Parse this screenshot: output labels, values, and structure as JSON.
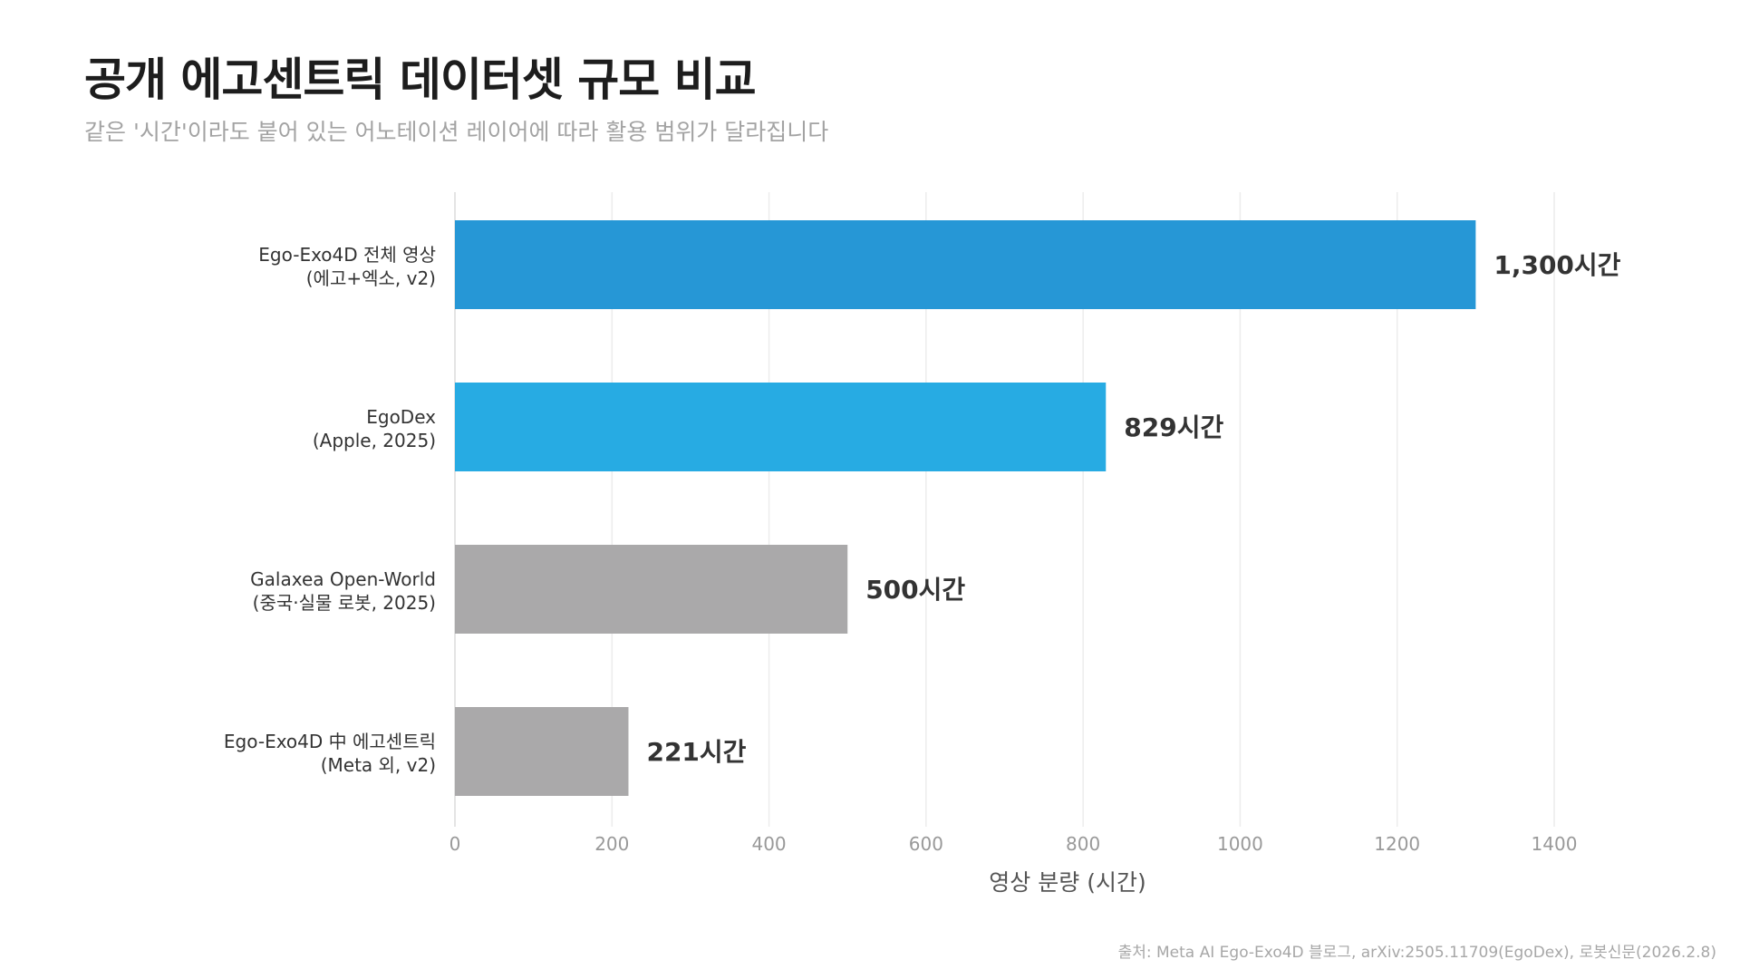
{
  "title": "공개 에고센트릭 데이터셋 규모 비교",
  "subtitle": "같은 '시간'이라도 붙어 있는 어노테이션 레이어에 따라 활용 범위가 달라집니다",
  "source": "출처: Meta AI Ego-Exo4D 블로그, arXiv:2505.11709(EgoDex), 로봇신문(2026.2.8)",
  "chart_data": {
    "type": "bar",
    "orientation": "horizontal",
    "categories": [
      [
        "Ego-Exo4D 전체 영상",
        "(에고+엑소, v2)"
      ],
      [
        "EgoDex",
        "(Apple, 2025)"
      ],
      [
        "Galaxea Open-World",
        "(중국·실물 로봇, 2025)"
      ],
      [
        "Ego-Exo4D 中 에고센트릭",
        "(Meta 외, v2)"
      ]
    ],
    "values": [
      1300,
      829,
      500,
      221
    ],
    "value_labels": [
      "1,300시간",
      "829시간",
      "500시간",
      "221시간"
    ],
    "colors": [
      "#2697d6",
      "#27abe3",
      "#aaa9aa",
      "#aaa9aa"
    ],
    "xlabel": "영상 분량 (시간)",
    "ylabel": "",
    "xlim": [
      0,
      1450
    ],
    "xticks": [
      0,
      200,
      400,
      600,
      800,
      1000,
      1200,
      1400
    ],
    "grid": "vertical",
    "gridline_color": "#ececec",
    "axis_color": "#dcdcdc",
    "tick_label_color": "#999999",
    "value_label_color": "#333333"
  }
}
